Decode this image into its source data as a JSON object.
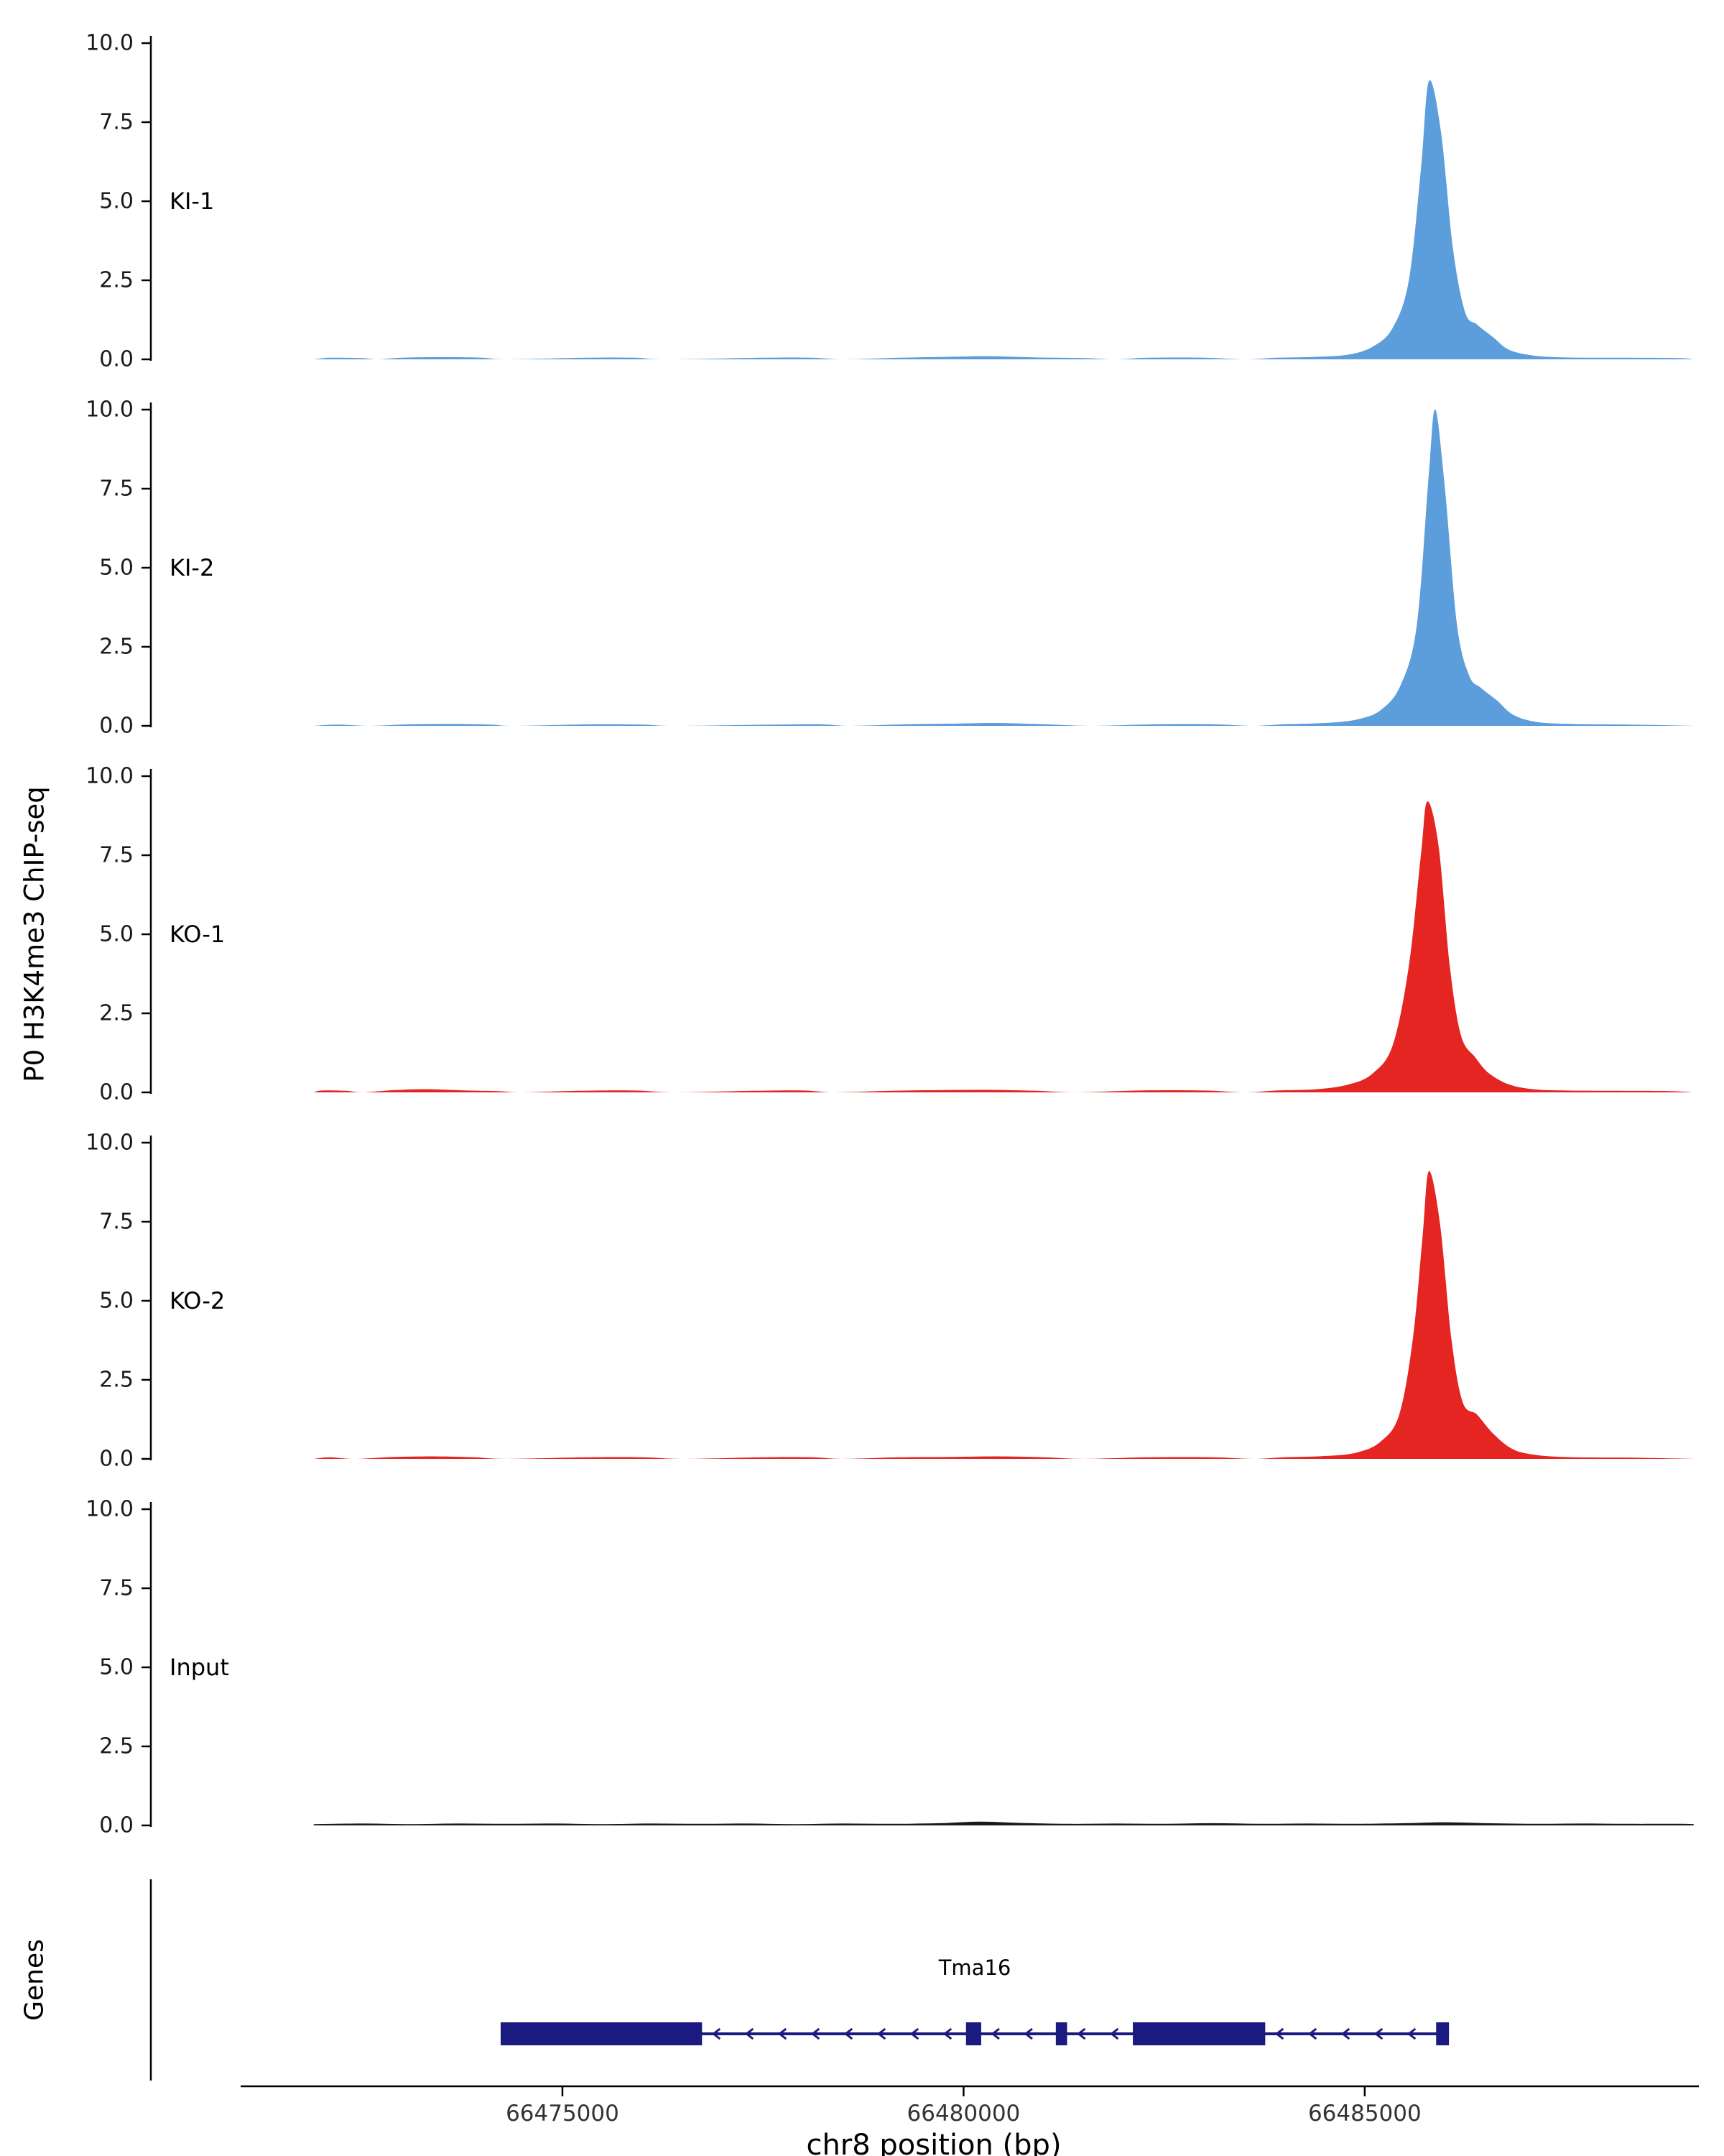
{
  "chart_data": {
    "type": "area",
    "title": "",
    "ylabel": "P0 H3K4me3 ChIP-seq",
    "xlabel": "chr8 position (bp)",
    "genes_label": "Genes",
    "x_domain": [
      66469870,
      66489120
    ],
    "x_ticks": [
      66475000,
      66480000,
      66485000
    ],
    "y_domain": [
      0,
      10
    ],
    "y_ticks": [
      0.0,
      2.5,
      5.0,
      7.5,
      10.0
    ],
    "grid": false,
    "legend": "none",
    "tracks": [
      {
        "name": "KI-1",
        "color": "#5C9EDB",
        "points": [
          [
            66471900,
            0
          ],
          [
            66472100,
            0.05
          ],
          [
            66472500,
            0.04
          ],
          [
            66472700,
            0
          ],
          [
            66473000,
            0.05
          ],
          [
            66473500,
            0.07
          ],
          [
            66474000,
            0.05
          ],
          [
            66474300,
            0
          ],
          [
            66475300,
            0.05
          ],
          [
            66475900,
            0.05
          ],
          [
            66476300,
            0
          ],
          [
            66477500,
            0.05
          ],
          [
            66478100,
            0.05
          ],
          [
            66478500,
            0
          ],
          [
            66479200,
            0.05
          ],
          [
            66479800,
            0.08
          ],
          [
            66480300,
            0.1
          ],
          [
            66480900,
            0.06
          ],
          [
            66481500,
            0.04
          ],
          [
            66481900,
            0
          ],
          [
            66482300,
            0.05
          ],
          [
            66483000,
            0.05
          ],
          [
            66483500,
            0
          ],
          [
            66483900,
            0.05
          ],
          [
            66484400,
            0.08
          ],
          [
            66484800,
            0.15
          ],
          [
            66485100,
            0.4
          ],
          [
            66485350,
            1.0
          ],
          [
            66485550,
            2.5
          ],
          [
            66485700,
            6.0
          ],
          [
            66485800,
            8.8
          ],
          [
            66485950,
            7.2
          ],
          [
            66486100,
            3.5
          ],
          [
            66486250,
            1.5
          ],
          [
            66486400,
            1.1
          ],
          [
            66486600,
            0.7
          ],
          [
            66486800,
            0.3
          ],
          [
            66487100,
            0.12
          ],
          [
            66487500,
            0.06
          ],
          [
            66488200,
            0.05
          ],
          [
            66488900,
            0.04
          ],
          [
            66489100,
            0
          ]
        ]
      },
      {
        "name": "KI-2",
        "color": "#5C9EDB",
        "points": [
          [
            66471900,
            0
          ],
          [
            66472200,
            0.04
          ],
          [
            66472600,
            0
          ],
          [
            66473100,
            0.05
          ],
          [
            66473600,
            0.06
          ],
          [
            66474100,
            0.04
          ],
          [
            66474400,
            0
          ],
          [
            66475400,
            0.05
          ],
          [
            66476000,
            0.04
          ],
          [
            66476400,
            0
          ],
          [
            66477600,
            0.04
          ],
          [
            66478200,
            0.05
          ],
          [
            66478600,
            0
          ],
          [
            66479300,
            0.05
          ],
          [
            66479900,
            0.07
          ],
          [
            66480400,
            0.09
          ],
          [
            66481000,
            0.05
          ],
          [
            66481600,
            0
          ],
          [
            66482400,
            0.05
          ],
          [
            66483100,
            0.05
          ],
          [
            66483600,
            0
          ],
          [
            66484000,
            0.05
          ],
          [
            66484500,
            0.09
          ],
          [
            66484900,
            0.2
          ],
          [
            66485200,
            0.5
          ],
          [
            66485450,
            1.3
          ],
          [
            66485650,
            3.2
          ],
          [
            66485800,
            8.0
          ],
          [
            66485880,
            10.0
          ],
          [
            66486000,
            7.5
          ],
          [
            66486150,
            3.2
          ],
          [
            66486300,
            1.6
          ],
          [
            66486450,
            1.2
          ],
          [
            66486650,
            0.8
          ],
          [
            66486850,
            0.35
          ],
          [
            66487150,
            0.12
          ],
          [
            66487600,
            0.06
          ],
          [
            66488300,
            0.04
          ],
          [
            66489100,
            0
          ]
        ]
      },
      {
        "name": "KO-1",
        "color": "#E42521",
        "points": [
          [
            66471900,
            0
          ],
          [
            66472000,
            0.06
          ],
          [
            66472300,
            0.05
          ],
          [
            66472500,
            0
          ],
          [
            66472900,
            0.07
          ],
          [
            66473300,
            0.1
          ],
          [
            66473800,
            0.06
          ],
          [
            66474200,
            0.04
          ],
          [
            66474500,
            0
          ],
          [
            66475200,
            0.05
          ],
          [
            66475900,
            0.06
          ],
          [
            66476400,
            0
          ],
          [
            66477400,
            0.05
          ],
          [
            66478000,
            0.06
          ],
          [
            66478400,
            0
          ],
          [
            66479100,
            0.05
          ],
          [
            66479700,
            0.07
          ],
          [
            66480300,
            0.08
          ],
          [
            66480900,
            0.05
          ],
          [
            66481400,
            0
          ],
          [
            66482200,
            0.06
          ],
          [
            66483000,
            0.06
          ],
          [
            66483500,
            0
          ],
          [
            66483900,
            0.06
          ],
          [
            66484400,
            0.1
          ],
          [
            66484800,
            0.25
          ],
          [
            66485100,
            0.6
          ],
          [
            66485350,
            1.5
          ],
          [
            66485550,
            4.0
          ],
          [
            66485700,
            7.5
          ],
          [
            66485780,
            9.2
          ],
          [
            66485920,
            7.8
          ],
          [
            66486060,
            4.0
          ],
          [
            66486200,
            1.8
          ],
          [
            66486380,
            1.1
          ],
          [
            66486550,
            0.6
          ],
          [
            66486800,
            0.25
          ],
          [
            66487100,
            0.1
          ],
          [
            66487500,
            0.06
          ],
          [
            66488100,
            0.05
          ],
          [
            66488800,
            0.04
          ],
          [
            66489100,
            0
          ]
        ]
      },
      {
        "name": "KO-2",
        "color": "#E42521",
        "points": [
          [
            66471900,
            0
          ],
          [
            66472100,
            0.05
          ],
          [
            66472400,
            0
          ],
          [
            66472900,
            0.06
          ],
          [
            66473400,
            0.08
          ],
          [
            66473900,
            0.05
          ],
          [
            66474300,
            0
          ],
          [
            66475300,
            0.05
          ],
          [
            66476000,
            0.05
          ],
          [
            66476500,
            0
          ],
          [
            66477500,
            0.05
          ],
          [
            66478100,
            0.05
          ],
          [
            66478500,
            0
          ],
          [
            66479200,
            0.05
          ],
          [
            66479800,
            0.06
          ],
          [
            66480400,
            0.08
          ],
          [
            66481000,
            0.05
          ],
          [
            66481500,
            0
          ],
          [
            66482300,
            0.05
          ],
          [
            66483100,
            0.05
          ],
          [
            66483600,
            0
          ],
          [
            66484000,
            0.05
          ],
          [
            66484500,
            0.09
          ],
          [
            66484900,
            0.2
          ],
          [
            66485200,
            0.55
          ],
          [
            66485430,
            1.4
          ],
          [
            66485600,
            3.8
          ],
          [
            66485720,
            7.0
          ],
          [
            66485800,
            9.1
          ],
          [
            66485940,
            7.4
          ],
          [
            66486080,
            3.8
          ],
          [
            66486220,
            1.8
          ],
          [
            66486400,
            1.4
          ],
          [
            66486600,
            0.8
          ],
          [
            66486850,
            0.3
          ],
          [
            66487150,
            0.12
          ],
          [
            66487600,
            0.05
          ],
          [
            66488300,
            0.04
          ],
          [
            66489100,
            0
          ]
        ]
      },
      {
        "name": "Input",
        "color": "#1A1A1A",
        "points": [
          [
            66471900,
            0.04
          ],
          [
            66472500,
            0.06
          ],
          [
            66473100,
            0.04
          ],
          [
            66473700,
            0.06
          ],
          [
            66474300,
            0.05
          ],
          [
            66474900,
            0.06
          ],
          [
            66475500,
            0.04
          ],
          [
            66476100,
            0.06
          ],
          [
            66476700,
            0.05
          ],
          [
            66477300,
            0.06
          ],
          [
            66477900,
            0.04
          ],
          [
            66478500,
            0.06
          ],
          [
            66479100,
            0.05
          ],
          [
            66479700,
            0.07
          ],
          [
            66480200,
            0.12
          ],
          [
            66480700,
            0.08
          ],
          [
            66481300,
            0.05
          ],
          [
            66481900,
            0.06
          ],
          [
            66482500,
            0.05
          ],
          [
            66483100,
            0.07
          ],
          [
            66483700,
            0.05
          ],
          [
            66484300,
            0.06
          ],
          [
            66484900,
            0.05
          ],
          [
            66485500,
            0.07
          ],
          [
            66486000,
            0.1
          ],
          [
            66486500,
            0.07
          ],
          [
            66487100,
            0.05
          ],
          [
            66487700,
            0.06
          ],
          [
            66488300,
            0.05
          ],
          [
            66488900,
            0.05
          ],
          [
            66489100,
            0.04
          ]
        ]
      }
    ],
    "gene_color": "#1A1A80",
    "gene": {
      "name": "Tma16",
      "strand": "-",
      "start": 66474230,
      "end": 66486050,
      "exons": [
        [
          66474230,
          66476740
        ],
        [
          66480030,
          66480220
        ],
        [
          66481150,
          66481290
        ],
        [
          66482110,
          66483760
        ],
        [
          66485890,
          66486050
        ]
      ]
    }
  }
}
